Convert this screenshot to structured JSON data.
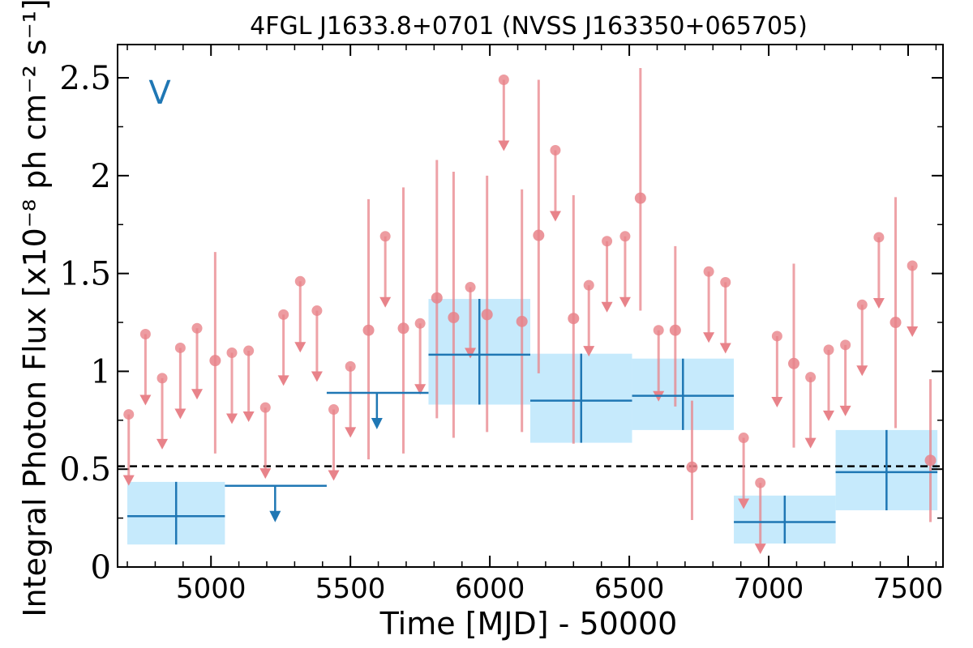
{
  "chart_data": {
    "type": "scatter",
    "title": "4FGL J1633.8+0701 (NVSS J163350+065705)",
    "xlabel": "Time [MJD] - 50000",
    "ylabel": "Integral Photon Flux [x10⁻⁸ ph cm⁻² s⁻¹]",
    "xlim": [
      4665,
      7625
    ],
    "ylim": [
      0,
      2.67
    ],
    "xticks": [
      5000,
      5500,
      6000,
      6500,
      7000,
      7500
    ],
    "xtick_labels": [
      "5000",
      "5500",
      "6000",
      "6500",
      "7000",
      "7500"
    ],
    "yticks": [
      0,
      0.5,
      1,
      1.5,
      2,
      2.5
    ],
    "ytick_labels": [
      "0",
      "0.5",
      "1",
      "1.5",
      "2",
      "2.5"
    ],
    "band_label": "V",
    "reference_line": {
      "y": 0.515,
      "style": "dashed"
    },
    "colors": {
      "monthly": "#e8838a",
      "yearly": "#1f77b4",
      "yearly_band": "#c6eafc",
      "reference": "#000000"
    },
    "series": [
      {
        "points": [
          {
            "x": 4705,
            "y": 0.78,
            "ul": true
          },
          {
            "x": 4765,
            "y": 1.19,
            "ul": true
          },
          {
            "x": 4825,
            "y": 0.965,
            "ul": true
          },
          {
            "x": 4890,
            "y": 1.12,
            "ul": true
          },
          {
            "x": 4950,
            "y": 1.22,
            "ul": true
          },
          {
            "x": 5015,
            "y": 1.055,
            "lo": 0.58,
            "hi": 1.61
          },
          {
            "x": 5075,
            "y": 1.095,
            "ul": true
          },
          {
            "x": 5135,
            "y": 1.105,
            "ul": true
          },
          {
            "x": 5195,
            "y": 0.815,
            "ul": true
          },
          {
            "x": 5260,
            "y": 1.29,
            "ul": true
          },
          {
            "x": 5320,
            "y": 1.46,
            "ul": true
          },
          {
            "x": 5380,
            "y": 1.31,
            "ul": true
          },
          {
            "x": 5440,
            "y": 0.805,
            "ul": true
          },
          {
            "x": 5500,
            "y": 1.025,
            "ul": true
          },
          {
            "x": 5565,
            "y": 1.21,
            "lo": 0.55,
            "hi": 1.88
          },
          {
            "x": 5625,
            "y": 1.69,
            "ul": true
          },
          {
            "x": 5690,
            "y": 1.22,
            "lo": 0.58,
            "hi": 1.94
          },
          {
            "x": 5750,
            "y": 1.245,
            "ul": true
          },
          {
            "x": 5810,
            "y": 1.375,
            "lo": 0.76,
            "hi": 2.08
          },
          {
            "x": 5870,
            "y": 1.275,
            "lo": 0.66,
            "hi": 2.02
          },
          {
            "x": 5930,
            "y": 1.43,
            "ul": true
          },
          {
            "x": 5990,
            "y": 1.29,
            "lo": 0.69,
            "hi": 2.0
          },
          {
            "x": 6050,
            "y": 2.49,
            "ul": true
          },
          {
            "x": 6115,
            "y": 1.255,
            "lo": 0.69,
            "hi": 1.93
          },
          {
            "x": 6175,
            "y": 1.695,
            "lo": 0.99,
            "hi": 2.49
          },
          {
            "x": 6235,
            "y": 2.13,
            "ul": true
          },
          {
            "x": 6300,
            "y": 1.27,
            "lo": 0.63,
            "hi": 1.9
          },
          {
            "x": 6355,
            "y": 1.44,
            "ul": true
          },
          {
            "x": 6420,
            "y": 1.665,
            "ul": true
          },
          {
            "x": 6485,
            "y": 1.69,
            "ul": true
          },
          {
            "x": 6540,
            "y": 1.885,
            "lo": 1.31,
            "hi": 2.55
          },
          {
            "x": 6605,
            "y": 1.21,
            "ul": true
          },
          {
            "x": 6665,
            "y": 1.21,
            "lo": 0.82,
            "hi": 1.64
          },
          {
            "x": 6725,
            "y": 0.51,
            "lo": 0.24,
            "hi": 0.85
          },
          {
            "x": 6785,
            "y": 1.51,
            "ul": true
          },
          {
            "x": 6845,
            "y": 1.455,
            "ul": true
          },
          {
            "x": 6910,
            "y": 0.66,
            "ul": true
          },
          {
            "x": 6970,
            "y": 0.43,
            "ul": true
          },
          {
            "x": 7030,
            "y": 1.18,
            "ul": true
          },
          {
            "x": 7090,
            "y": 1.04,
            "lo": 0.61,
            "hi": 1.55
          },
          {
            "x": 7150,
            "y": 0.97,
            "ul": true
          },
          {
            "x": 7215,
            "y": 1.11,
            "ul": true
          },
          {
            "x": 7275,
            "y": 1.135,
            "ul": true
          },
          {
            "x": 7335,
            "y": 1.34,
            "ul": true
          },
          {
            "x": 7395,
            "y": 1.685,
            "ul": true
          },
          {
            "x": 7455,
            "y": 1.25,
            "lo": 0.71,
            "hi": 1.89
          },
          {
            "x": 7515,
            "y": 1.54,
            "ul": true
          },
          {
            "x": 7580,
            "y": 0.545,
            "lo": 0.23,
            "hi": 0.96
          }
        ]
      },
      {
        "bins": [
          {
            "x0": 4700,
            "x1": 5050,
            "y": 0.26,
            "lo": 0.115,
            "hi": 0.435
          },
          {
            "x0": 5050,
            "x1": 5415,
            "y": 0.415,
            "ul": true,
            "arrow_x": 5230
          },
          {
            "x0": 5415,
            "x1": 5780,
            "y": 0.89,
            "ul": true,
            "arrow_x": 5595
          },
          {
            "x0": 5780,
            "x1": 6145,
            "y": 1.085,
            "lo": 0.83,
            "hi": 1.37
          },
          {
            "x0": 6145,
            "x1": 6510,
            "y": 0.85,
            "lo": 0.635,
            "hi": 1.09
          },
          {
            "x0": 6510,
            "x1": 6875,
            "y": 0.875,
            "lo": 0.7,
            "hi": 1.065
          },
          {
            "x0": 6875,
            "x1": 7240,
            "y": 0.23,
            "lo": 0.12,
            "hi": 0.365
          },
          {
            "x0": 7240,
            "x1": 7605,
            "y": 0.485,
            "lo": 0.29,
            "hi": 0.7
          }
        ]
      }
    ]
  }
}
